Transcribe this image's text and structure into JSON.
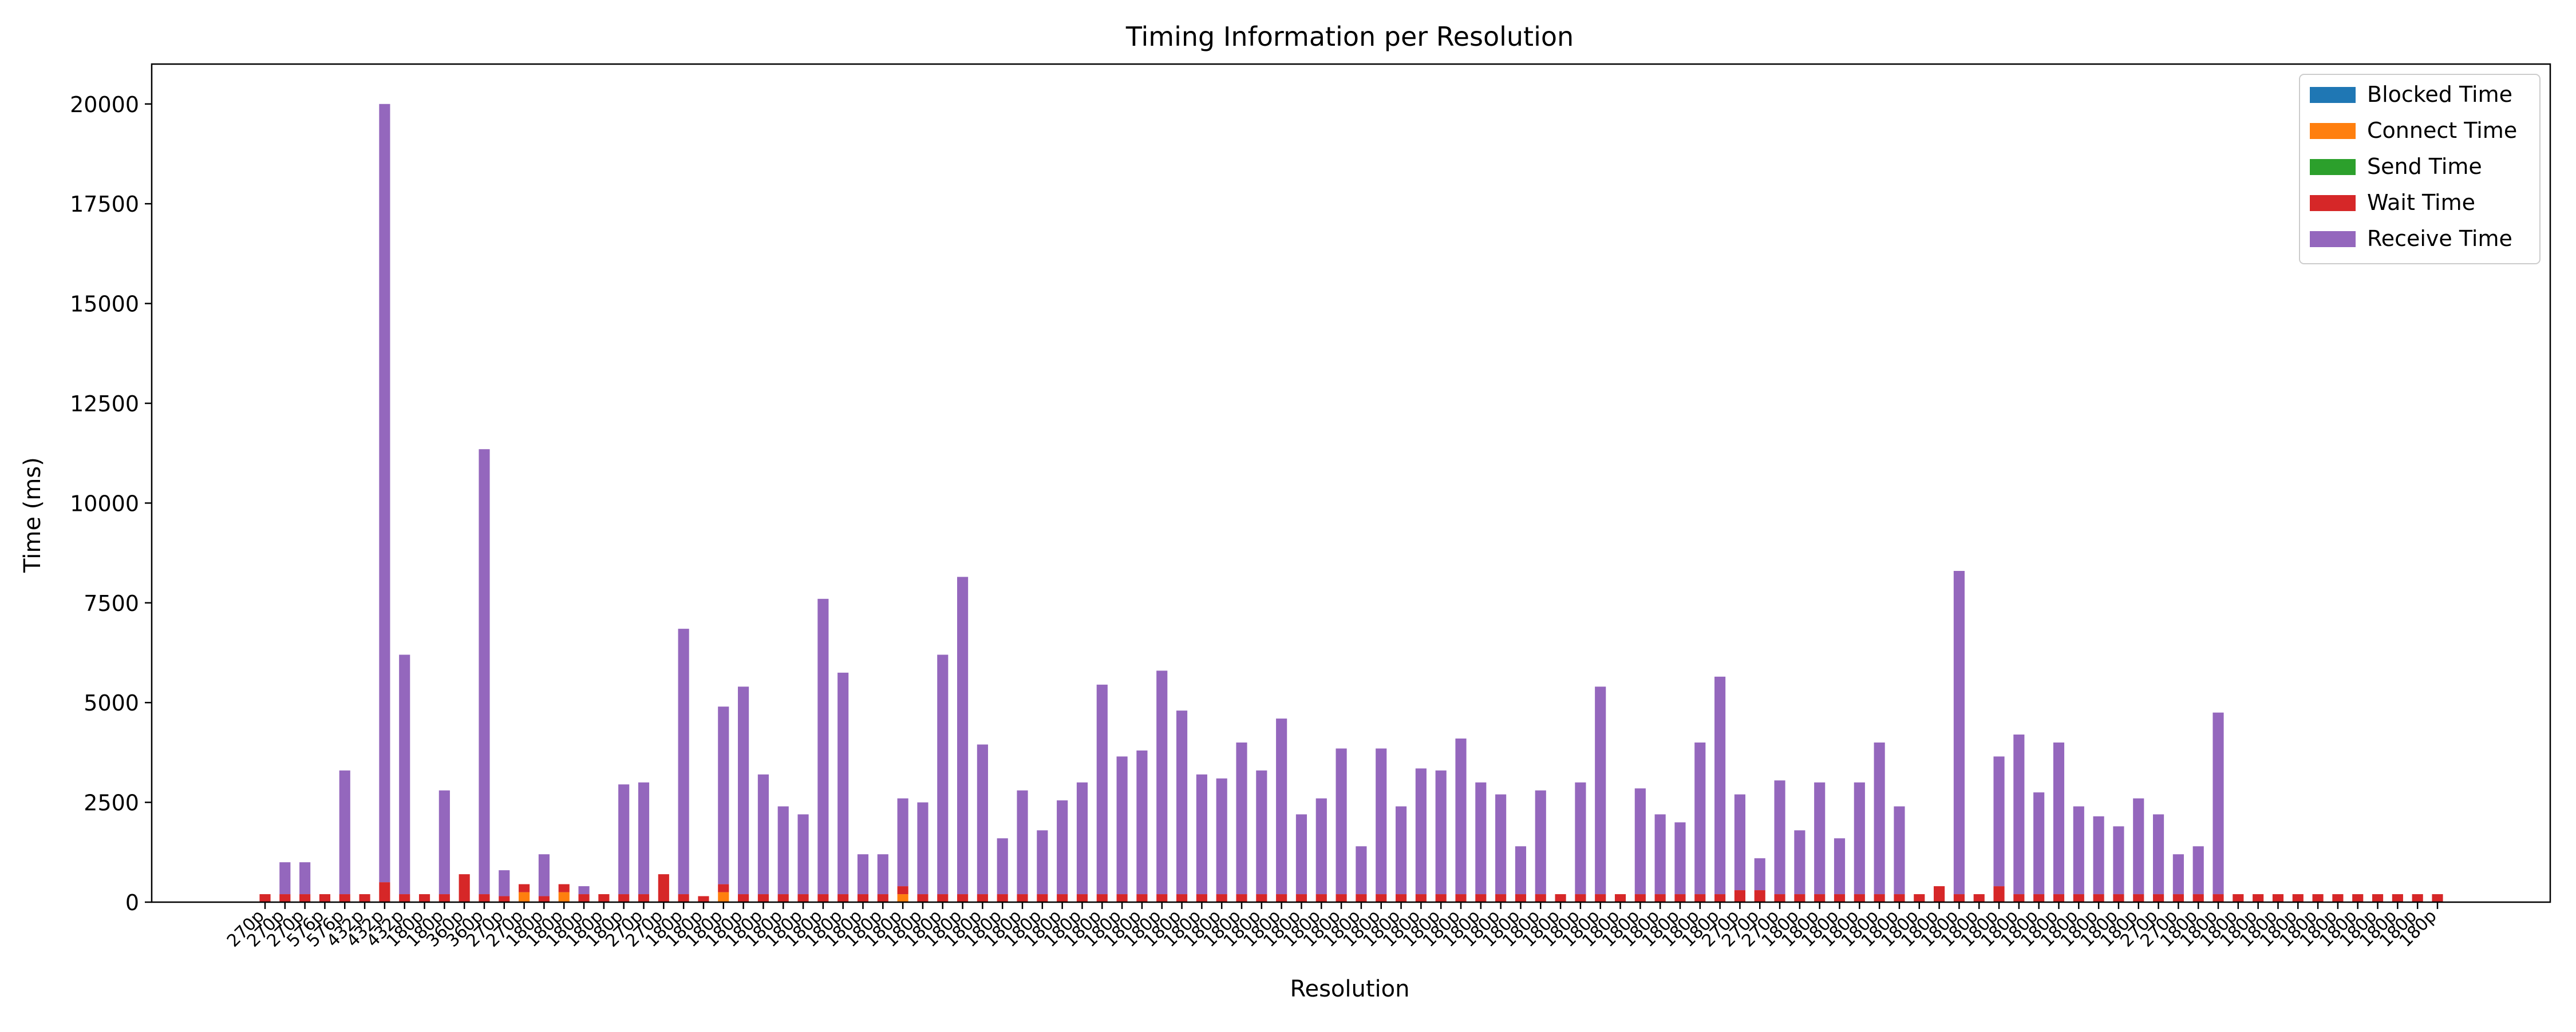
{
  "chart_data": {
    "type": "bar",
    "stacked": true,
    "title": "Timing Information per Resolution",
    "xlabel": "Resolution",
    "ylabel": "Time (ms)",
    "ylim": [
      0,
      21000
    ],
    "yticks": [
      0,
      2500,
      5000,
      7500,
      10000,
      12500,
      15000,
      17500,
      20000
    ],
    "grid": false,
    "legend_position": "top-right",
    "categories": [
      "270p",
      "270p",
      "270p",
      "576p",
      "576p",
      "432p",
      "432p",
      "432p",
      "180p",
      "180p",
      "360p",
      "360p",
      "270p",
      "270p",
      "180p",
      "180p",
      "180p",
      "180p",
      "180p",
      "270p",
      "270p",
      "180p",
      "180p",
      "180p",
      "180p",
      "180p",
      "180p",
      "180p",
      "180p",
      "180p",
      "180p",
      "180p",
      "180p",
      "180p",
      "180p",
      "180p",
      "180p",
      "180p",
      "180p",
      "180p",
      "180p",
      "180p",
      "180p",
      "180p",
      "180p",
      "180p",
      "180p",
      "180p",
      "180p",
      "180p",
      "180p",
      "180p",
      "180p",
      "180p",
      "180p",
      "180p",
      "180p",
      "180p",
      "180p",
      "180p",
      "180p",
      "180p",
      "180p",
      "180p",
      "180p",
      "180p",
      "180p",
      "180p",
      "180p",
      "180p",
      "180p",
      "180p",
      "180p",
      "180p",
      "270p",
      "270p",
      "270p",
      "180p",
      "180p",
      "180p",
      "180p",
      "180p",
      "180p",
      "180p",
      "180p",
      "180p",
      "180p",
      "180p",
      "180p",
      "180p",
      "180p",
      "180p",
      "180p",
      "180p",
      "180p",
      "270p",
      "270p",
      "180p",
      "180p",
      "180p",
      "180p",
      "180p",
      "180p",
      "180p",
      "180p",
      "180p",
      "180p",
      "180p",
      "180p",
      "180p"
    ],
    "series": [
      {
        "name": "Blocked Time",
        "color": "#1f77b4",
        "values": [
          0,
          0,
          0,
          0,
          0,
          0,
          0,
          0,
          0,
          0,
          0,
          0,
          0,
          0,
          0,
          0,
          0,
          0,
          0,
          0,
          0,
          0,
          0,
          0,
          0,
          0,
          0,
          0,
          0,
          0,
          0,
          0,
          0,
          0,
          0,
          0,
          0,
          0,
          0,
          0,
          0,
          0,
          0,
          0,
          0,
          0,
          0,
          0,
          0,
          0,
          0,
          0,
          0,
          0,
          0,
          0,
          0,
          0,
          0,
          0,
          0,
          0,
          0,
          0,
          0,
          0,
          0,
          0,
          0,
          0,
          0,
          0,
          0,
          0,
          0,
          0,
          0,
          0,
          0,
          0,
          0,
          0,
          0,
          0,
          0,
          0,
          0,
          0,
          0,
          0,
          0,
          0,
          0,
          0,
          0,
          0,
          0,
          0,
          0,
          0,
          0,
          0,
          0,
          0,
          0,
          0,
          0,
          0,
          0,
          0
        ]
      },
      {
        "name": "Connect Time",
        "color": "#ff7f0e",
        "values": [
          0,
          0,
          0,
          0,
          0,
          0,
          0,
          0,
          0,
          0,
          0,
          0,
          0,
          250,
          0,
          250,
          0,
          0,
          0,
          0,
          0,
          0,
          0,
          250,
          0,
          0,
          0,
          0,
          0,
          0,
          0,
          0,
          200,
          0,
          0,
          0,
          0,
          0,
          0,
          0,
          0,
          0,
          0,
          0,
          0,
          0,
          0,
          0,
          0,
          0,
          0,
          0,
          0,
          0,
          0,
          0,
          0,
          0,
          0,
          0,
          0,
          0,
          0,
          0,
          0,
          0,
          0,
          0,
          0,
          0,
          0,
          0,
          0,
          0,
          0,
          0,
          0,
          0,
          0,
          0,
          0,
          0,
          0,
          0,
          0,
          0,
          0,
          0,
          0,
          0,
          0,
          0,
          0,
          0,
          0,
          0,
          0,
          0,
          0,
          0,
          0,
          0,
          0,
          0,
          0,
          0,
          0,
          0,
          0,
          0
        ]
      },
      {
        "name": "Send Time",
        "color": "#2ca02c",
        "values": [
          0,
          0,
          0,
          0,
          0,
          0,
          0,
          0,
          0,
          0,
          0,
          0,
          0,
          0,
          0,
          0,
          0,
          0,
          0,
          0,
          0,
          0,
          0,
          0,
          0,
          0,
          0,
          0,
          0,
          0,
          0,
          0,
          0,
          0,
          0,
          0,
          0,
          0,
          0,
          0,
          0,
          0,
          0,
          0,
          0,
          0,
          0,
          0,
          0,
          0,
          0,
          0,
          0,
          0,
          0,
          0,
          0,
          0,
          0,
          0,
          0,
          0,
          0,
          0,
          0,
          0,
          0,
          0,
          0,
          0,
          0,
          0,
          0,
          0,
          0,
          0,
          0,
          0,
          0,
          0,
          0,
          0,
          0,
          0,
          0,
          0,
          0,
          0,
          0,
          0,
          0,
          0,
          0,
          0,
          0,
          0,
          0,
          0,
          0,
          0,
          0,
          0,
          0,
          0,
          0,
          0,
          0,
          0,
          0,
          0
        ]
      },
      {
        "name": "Wait Time",
        "color": "#d62728",
        "values": [
          200,
          200,
          200,
          200,
          200,
          200,
          500,
          200,
          200,
          200,
          700,
          200,
          150,
          200,
          150,
          200,
          200,
          200,
          200,
          200,
          700,
          200,
          150,
          200,
          200,
          200,
          200,
          200,
          200,
          200,
          200,
          200,
          200,
          200,
          200,
          200,
          200,
          200,
          200,
          200,
          200,
          200,
          200,
          200,
          200,
          200,
          200,
          200,
          200,
          200,
          200,
          200,
          200,
          200,
          200,
          200,
          200,
          200,
          200,
          200,
          200,
          200,
          200,
          200,
          200,
          200,
          200,
          200,
          200,
          200,
          200,
          200,
          200,
          200,
          300,
          300,
          200,
          200,
          200,
          200,
          200,
          200,
          200,
          200,
          400,
          200,
          200,
          400,
          200,
          200,
          200,
          200,
          200,
          200,
          200,
          200,
          200,
          200,
          200,
          200,
          200,
          200,
          200,
          200,
          200,
          200,
          200,
          200,
          200,
          200
        ]
      },
      {
        "name": "Receive Time",
        "color": "#9467bd",
        "values": [
          0,
          800,
          800,
          0,
          3100,
          0,
          19500,
          6000,
          0,
          2600,
          0,
          11150,
          650,
          0,
          1050,
          0,
          200,
          0,
          2750,
          2800,
          0,
          6650,
          0,
          4450,
          5200,
          3000,
          2200,
          2000,
          7400,
          5550,
          1000,
          1000,
          2200,
          2300,
          6000,
          7950,
          3750,
          1400,
          2600,
          1600,
          2350,
          2800,
          5250,
          3450,
          3600,
          5600,
          4600,
          3000,
          2900,
          3800,
          3100,
          4400,
          2000,
          2400,
          3650,
          1200,
          3650,
          2200,
          3150,
          3100,
          3900,
          2800,
          2500,
          1200,
          2600,
          0,
          2800,
          5200,
          0,
          2650,
          2000,
          1800,
          3800,
          5450,
          2400,
          800,
          2850,
          1600,
          2800,
          1400,
          2800,
          3800,
          2200,
          0,
          0,
          8100,
          0,
          3250,
          4000,
          2550,
          3800,
          2200,
          1950,
          1700,
          2400,
          2000,
          1000,
          1200,
          4550,
          0,
          0,
          0,
          0,
          0,
          0,
          0,
          0,
          0,
          0,
          0
        ]
      }
    ]
  }
}
